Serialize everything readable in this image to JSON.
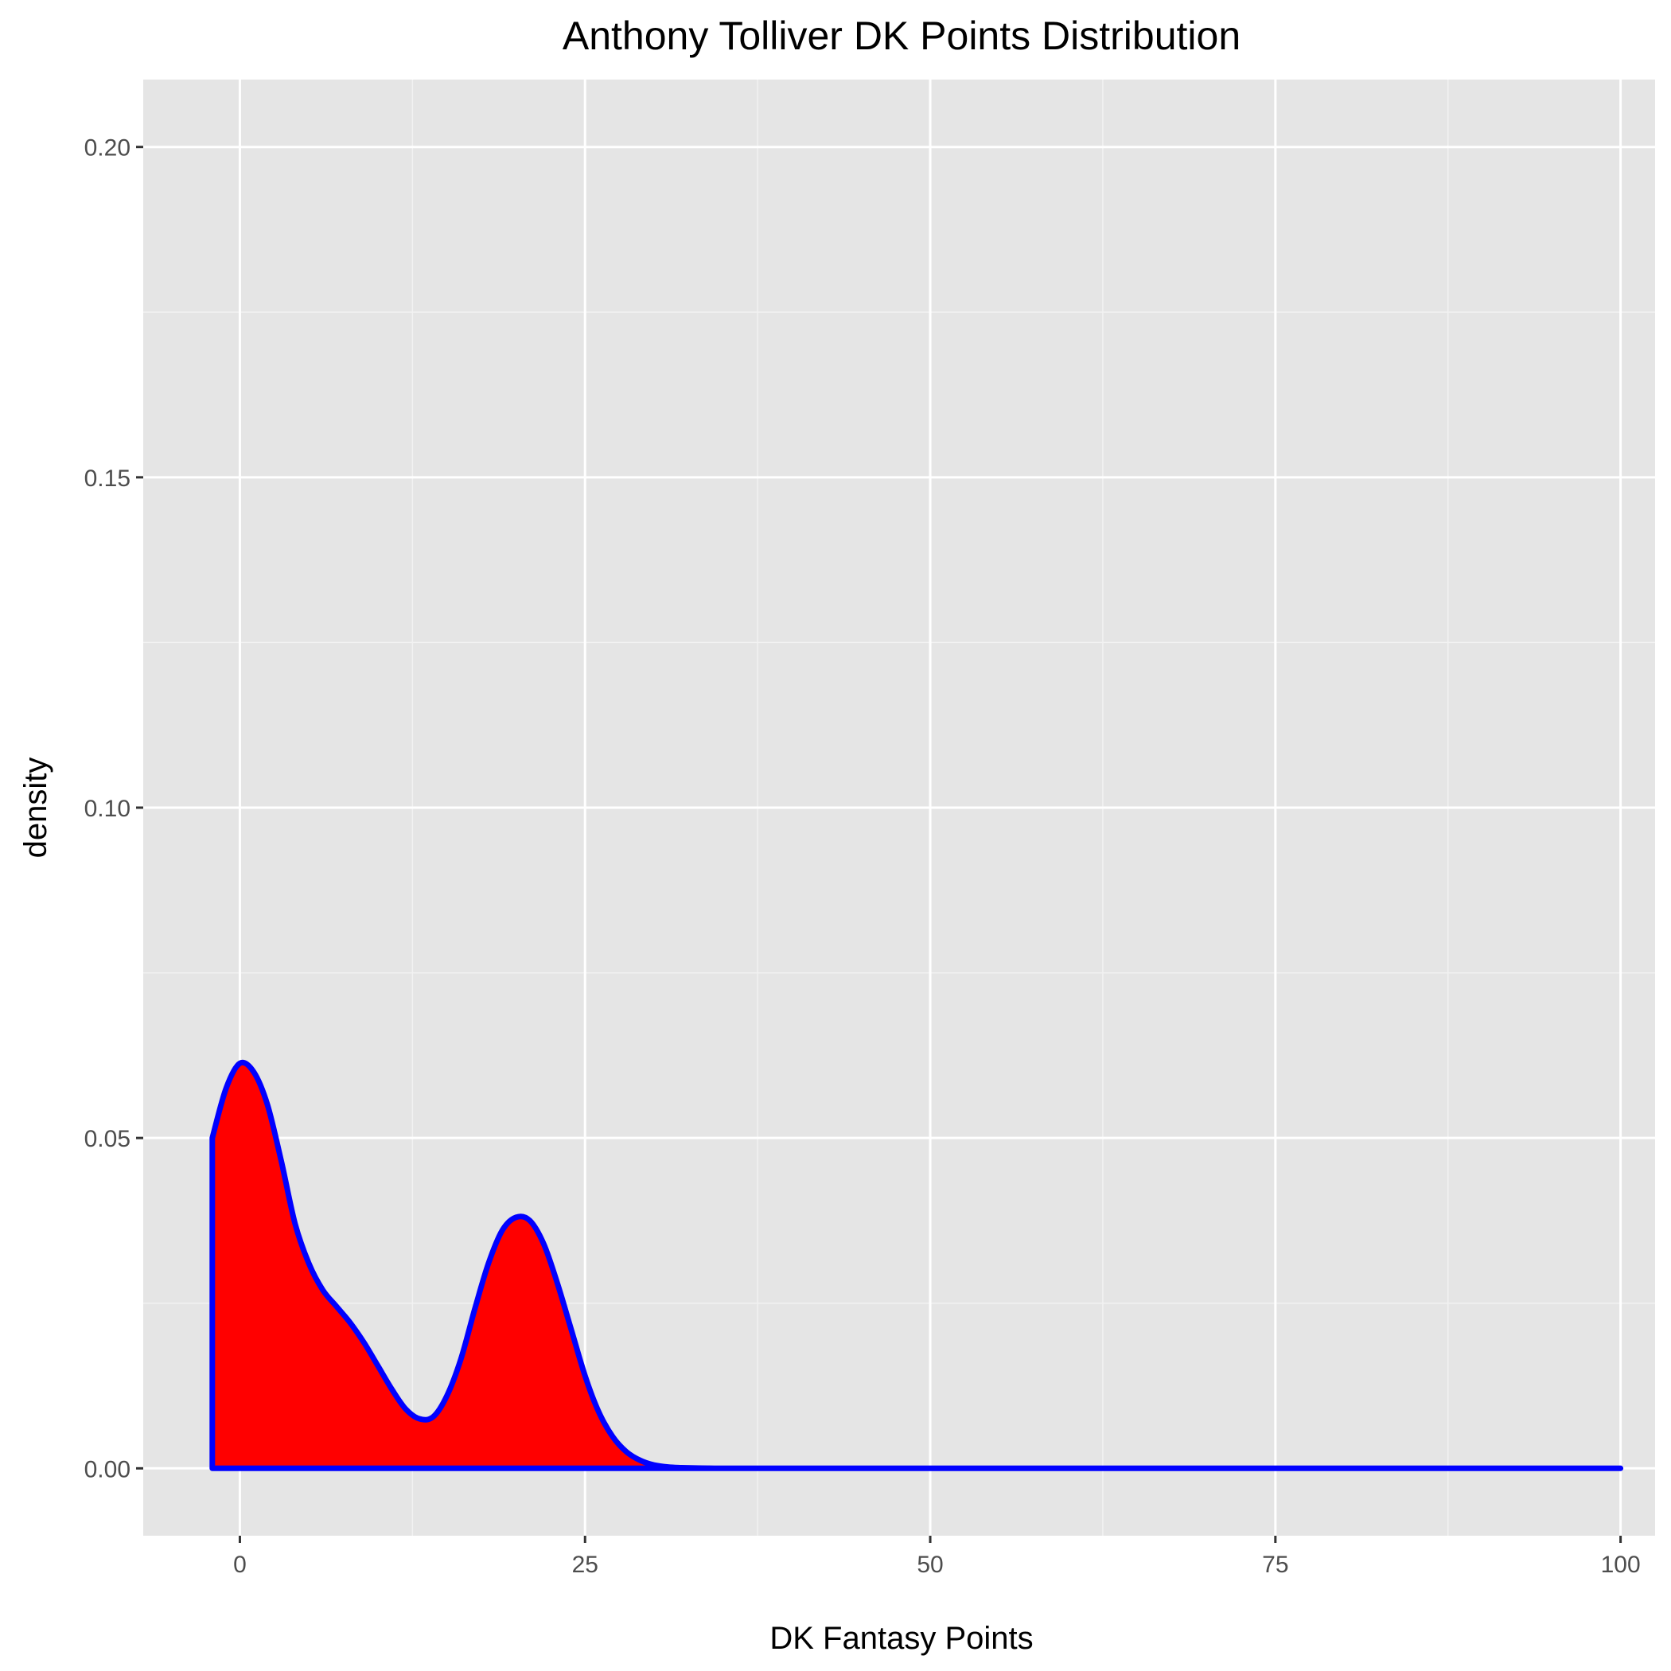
{
  "chart_data": {
    "type": "area",
    "title": "Anthony Tolliver DK Points Distribution",
    "xlabel": "DK Fantasy Points",
    "ylabel": "density",
    "xlim": [
      -7,
      102.5
    ],
    "ylim": [
      -0.0102,
      0.2102
    ],
    "x_ticks": [
      0,
      25,
      50,
      75,
      100
    ],
    "x_tick_labels": [
      "0",
      "25",
      "50",
      "75",
      "100"
    ],
    "y_ticks": [
      0,
      0.05,
      0.1,
      0.15,
      0.2
    ],
    "y_tick_labels": [
      "0.00",
      "0.05",
      "0.10",
      "0.15",
      "0.20"
    ],
    "grid": true,
    "fill_color": "#ff0000",
    "line_color": "#0000ff",
    "panel_background": "#e5e5e5",
    "series": [
      {
        "x": [
          -2,
          -1,
          0,
          1,
          2,
          3,
          4,
          5,
          6,
          7,
          8,
          9,
          10,
          11,
          12,
          13,
          14,
          15,
          16,
          17,
          18,
          19,
          20,
          21,
          22,
          23,
          24,
          25,
          26,
          27,
          28,
          29,
          30,
          31,
          32,
          34,
          36,
          40,
          50,
          60,
          70,
          80,
          90,
          100
        ],
        "y": [
          0.05,
          0.0575,
          0.0613,
          0.06,
          0.055,
          0.0465,
          0.037,
          0.031,
          0.027,
          0.0245,
          0.022,
          0.019,
          0.0155,
          0.012,
          0.009,
          0.0075,
          0.0078,
          0.011,
          0.0165,
          0.024,
          0.031,
          0.036,
          0.038,
          0.0375,
          0.034,
          0.028,
          0.021,
          0.014,
          0.0085,
          0.0048,
          0.0025,
          0.0012,
          0.0005,
          0.0002,
          0.0001,
          2e-05,
          0,
          0,
          0,
          0,
          0,
          0,
          0,
          0
        ]
      }
    ]
  }
}
